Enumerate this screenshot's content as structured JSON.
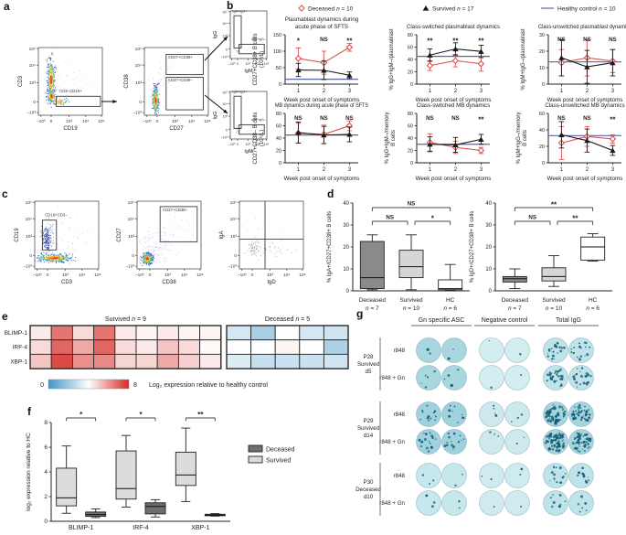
{
  "panels": {
    "a": "a",
    "b": "b",
    "c": "c",
    "d": "d",
    "e": "e",
    "f": "f",
    "g": "g"
  },
  "flow_ticks": {
    "x": [
      "–10³",
      "0",
      "10³",
      "10⁴",
      "10⁵"
    ],
    "y": [
      "–10³",
      "0",
      "10³",
      "10⁴",
      "10⁵"
    ]
  },
  "panel_a": {
    "plot1": {
      "xlabel": "CD19",
      "ylabel": "CD3",
      "gate": "CD3–CD19+"
    },
    "plot2": {
      "xlabel": "CD27",
      "ylabel": "CD38",
      "gate_top": "CD27+CD38+",
      "gate_bottom": "CD27+CD38–"
    },
    "small_top": {
      "xlabel": "IgM",
      "ylabel": "IgG",
      "gate_vertical": "IgM–IgG+",
      "gate_horizontal": "IgM+IgG–"
    },
    "small_bottom": {
      "xlabel": "IgM",
      "ylabel": "IgG",
      "gate_vertical": "IgM–IgG+",
      "gate_horizontal": "IgM+IgG–"
    }
  },
  "panel_b": {
    "legend": [
      {
        "label": "Deceased n = 10",
        "color": "#e0524e",
        "marker": "diamond"
      },
      {
        "label": "Survived n = 17",
        "color": "#1a1a1a",
        "marker": "triangle"
      },
      {
        "label": "Healthy control n = 10",
        "color": "#5b64a8",
        "marker": "line"
      }
    ],
    "xlabel": "Week post onset of symptoms"
  },
  "panel_c": {
    "plot1": {
      "xlabel": "CD3",
      "ylabel": "CD19",
      "gate": "CD19+CD3–"
    },
    "plot2": {
      "xlabel": "CD38",
      "ylabel": "CD27",
      "gate": "CD27+CD38+"
    },
    "plot3": {
      "xlabel": "IgD",
      "ylabel": "IgA"
    }
  },
  "panel_e": {
    "title_survived": "Survived n = 9",
    "title_deceased": "Deceased n = 5",
    "colorbar": {
      "min": "0",
      "max": "8",
      "label": "Log₂ expression relative to healthy control"
    }
  },
  "panel_f": {
    "legend": [
      {
        "label": "Deceased",
        "color": "#6e6e6e"
      },
      {
        "label": "Survived",
        "color": "#dcdcdc"
      }
    ]
  },
  "panel_g": {
    "headers": [
      "Gn specific ASC",
      "Negative control",
      "Total IgG"
    ],
    "spot_color": "#155d75",
    "groups": [
      {
        "label_lines": [
          "P28",
          "Survived",
          "d5"
        ],
        "well_colors": [
          "#a9d7e0",
          "#d3edf1",
          "#bfe3e9"
        ],
        "rows": [
          {
            "label": "r848",
            "spots": [
              2,
              1,
              20
            ]
          },
          {
            "label": "r848 + Gn",
            "spots": [
              5,
              1,
              28
            ]
          }
        ]
      },
      {
        "label_lines": [
          "P29",
          "Survived",
          "d14"
        ],
        "well_colors": [
          "#9fd2dc",
          "#cde9ee",
          "#a5d5de"
        ],
        "rows": [
          {
            "label": "r848",
            "spots": [
              12,
              4,
              55
            ]
          },
          {
            "label": "r848 + Gn",
            "spots": [
              18,
              3,
              68
            ]
          }
        ]
      },
      {
        "label_lines": [
          "P30",
          "Deceased",
          "d10"
        ],
        "well_colors": [
          "#c6e7ec",
          "#cfebef",
          "#bee3e9"
        ],
        "rows": [
          {
            "label": "r848",
            "spots": [
              3,
              2,
              15
            ]
          },
          {
            "label": "r848 + Gn",
            "spots": [
              3,
              1,
              8
            ]
          }
        ]
      }
    ]
  },
  "chart_data": [
    {
      "id": "b1",
      "type": "line",
      "title": [
        "Plasmablast dynamics during",
        "acute phase of SFTS"
      ],
      "ylabel": [
        "CD27+CD38+ B cells",
        "(10⁶/L)"
      ],
      "ylim": [
        0,
        150
      ],
      "yticks": [
        0,
        50,
        100,
        150
      ],
      "x": [
        1,
        2,
        3
      ],
      "xlabel": "Week post onset of symptoms",
      "sig": [
        "*",
        "NS",
        "**"
      ],
      "series": [
        {
          "name": "Deceased",
          "color": "#e0524e",
          "marker": "diamond",
          "values": [
            78,
            65,
            112
          ],
          "err": [
            32,
            35,
            12
          ]
        },
        {
          "name": "Survived",
          "color": "#1a1a1a",
          "marker": "triangle",
          "values": [
            43,
            42,
            27
          ],
          "err": [
            20,
            28,
            10
          ]
        }
      ],
      "hc": 15
    },
    {
      "id": "b2",
      "type": "line",
      "title": [
        "Class-switched plasmablast dynamics"
      ],
      "ylabel": [
        "% IgG+IgM–/plasmablast"
      ],
      "ylim": [
        0,
        80
      ],
      "yticks": [
        0,
        20,
        40,
        60,
        80
      ],
      "x": [
        1,
        2,
        3
      ],
      "xlabel": "Week post onset of symptoms",
      "sig": [
        "**",
        "**",
        "**"
      ],
      "series": [
        {
          "name": "Deceased",
          "color": "#e0524e",
          "marker": "diamond",
          "values": [
            30,
            38,
            33
          ],
          "err": [
            8,
            10,
            12
          ]
        },
        {
          "name": "Survived",
          "color": "#1a1a1a",
          "marker": "triangle",
          "values": [
            47,
            57,
            53
          ],
          "err": [
            10,
            10,
            10
          ]
        }
      ],
      "hc": 45
    },
    {
      "id": "b3",
      "type": "line",
      "title": [
        "Class-unswitched plasmablast dynamics"
      ],
      "ylabel": [
        "% IgM+IgG–/plasmablast"
      ],
      "ylim": [
        0,
        30
      ],
      "yticks": [
        0,
        10,
        20,
        30
      ],
      "x": [
        1,
        2,
        3
      ],
      "xlabel": "Week post onset of symptoms",
      "sig": [
        "NS",
        "NS",
        "NS"
      ],
      "series": [
        {
          "name": "Deceased",
          "color": "#e0524e",
          "marker": "diamond",
          "values": [
            13,
            16,
            14
          ],
          "err": [
            8,
            11,
            7
          ]
        },
        {
          "name": "Survived",
          "color": "#1a1a1a",
          "marker": "triangle",
          "values": [
            16,
            10.5,
            13
          ],
          "err": [
            11,
            10,
            8
          ]
        }
      ],
      "hc": 13.5
    },
    {
      "id": "b4",
      "type": "line",
      "title": [
        "MB dynamics during acute phase of SFTS"
      ],
      "ylabel": [
        "CD27+CD38– B cells",
        "(10⁶/L)"
      ],
      "ylim": [
        0,
        80
      ],
      "yticks": [
        0,
        20,
        40,
        60,
        80
      ],
      "x": [
        1,
        2,
        3
      ],
      "xlabel": "Week post onset of symptoms",
      "sig": [
        "NS",
        "NS",
        "NS"
      ],
      "series": [
        {
          "name": "Deceased",
          "color": "#e0524e",
          "marker": "diamond",
          "values": [
            48,
            46,
            60
          ],
          "err": [
            16,
            15,
            8
          ]
        },
        {
          "name": "Survived",
          "color": "#1a1a1a",
          "marker": "triangle",
          "values": [
            49,
            45,
            46
          ],
          "err": [
            17,
            14,
            12
          ]
        }
      ],
      "hc": 45
    },
    {
      "id": "b5",
      "type": "line",
      "title": [
        "Class-switched MB dynamics"
      ],
      "ylabel": [
        "% IgG+IgM–/memory",
        "B cells"
      ],
      "ylim": [
        0,
        80
      ],
      "yticks": [
        0,
        20,
        40,
        60,
        80
      ],
      "x": [
        1,
        2,
        3
      ],
      "xlabel": "Week post onset of symptoms",
      "sig": [
        "NS",
        "NS",
        "**"
      ],
      "series": [
        {
          "name": "Deceased",
          "color": "#e0524e",
          "marker": "diamond",
          "values": [
            33,
            25,
            20
          ],
          "err": [
            14,
            10,
            5
          ]
        },
        {
          "name": "Survived",
          "color": "#1a1a1a",
          "marker": "triangle",
          "values": [
            30,
            29,
            38
          ],
          "err": [
            12,
            12,
            8
          ]
        }
      ],
      "hc": 30
    },
    {
      "id": "b6",
      "type": "line",
      "title": [
        "Class-unswitched MB dynamics"
      ],
      "ylabel": [
        "% IgM+IgG–/memory",
        "B cells"
      ],
      "ylim": [
        0,
        60
      ],
      "yticks": [
        0,
        20,
        40,
        60
      ],
      "x": [
        1,
        2,
        3
      ],
      "xlabel": "Week post onset of symptoms",
      "sig": [
        "NS",
        "NS",
        "**"
      ],
      "series": [
        {
          "name": "Deceased",
          "color": "#e0524e",
          "marker": "diamond",
          "values": [
            24,
            32,
            29
          ],
          "err": [
            20,
            12,
            5
          ],
          "hc_note": ""
        },
        {
          "name": "Survived",
          "color": "#1a1a1a",
          "marker": "triangle",
          "values": [
            34,
            27,
            15
          ],
          "err": [
            16,
            14,
            6
          ]
        }
      ],
      "hc": 33
    },
    {
      "id": "d1",
      "type": "box",
      "ylabel": "% IgA+/CD27+CD38+ B cells",
      "ylim": [
        0,
        40
      ],
      "yticks": [
        0,
        10,
        20,
        30,
        40
      ],
      "categories": [
        {
          "label": "Deceased",
          "n": "n = 7",
          "fill": "#8a8a8a"
        },
        {
          "label": "Survived",
          "n": "n = 10",
          "fill": "#d6d6d6"
        },
        {
          "label": "HC",
          "n": "n = 6",
          "fill": "#ffffff"
        }
      ],
      "boxes": [
        {
          "min": 0.5,
          "q1": 1,
          "median": 6,
          "q3": 22.5,
          "max": 25.5
        },
        {
          "min": 0.5,
          "q1": 6,
          "median": 11,
          "q3": 18.5,
          "max": 25.5
        },
        {
          "min": 0.3,
          "q1": 0.5,
          "median": 1,
          "q3": 5,
          "max": 12
        }
      ],
      "sig": [
        {
          "from": 0,
          "to": 2,
          "label": "NS",
          "level": 0
        },
        {
          "from": 0,
          "to": 1,
          "label": "NS",
          "level": 1
        },
        {
          "from": 1,
          "to": 2,
          "label": "*",
          "level": 1
        }
      ]
    },
    {
      "id": "d2",
      "type": "box",
      "ylabel": "% IgD+/CD27+CD38+ B cells",
      "ylim": [
        0,
        40
      ],
      "yticks": [
        0,
        10,
        20,
        30,
        40
      ],
      "categories": [
        {
          "label": "Deceased",
          "n": "n = 7",
          "fill": "#8a8a8a"
        },
        {
          "label": "Survived",
          "n": "n = 10",
          "fill": "#d6d6d6"
        },
        {
          "label": "HC",
          "n": "n = 6",
          "fill": "#ffffff"
        }
      ],
      "boxes": [
        {
          "min": 1,
          "q1": 4,
          "median": 5.5,
          "q3": 6.5,
          "max": 10
        },
        {
          "min": 2,
          "q1": 4.5,
          "median": 6.5,
          "q3": 10.5,
          "max": 16
        },
        {
          "min": 13.5,
          "q1": 14,
          "median": 20,
          "q3": 24.5,
          "max": 26
        }
      ],
      "sig": [
        {
          "from": 0,
          "to": 2,
          "label": "**",
          "level": 0
        },
        {
          "from": 0,
          "to": 1,
          "label": "NS",
          "level": 1
        },
        {
          "from": 1,
          "to": 2,
          "label": "**",
          "level": 1
        }
      ]
    },
    {
      "id": "e",
      "type": "heatmap",
      "rows": [
        "BLIMP-1",
        "IRF-4",
        "XBP-1"
      ],
      "groups": [
        {
          "name": "Survived n = 9",
          "values": [
            [
              4.4,
              6.6,
              4.7,
              6.6,
              4.4,
              4.2,
              4.4,
              4.2,
              4.2
            ],
            [
              4.7,
              6.9,
              5.6,
              6.9,
              4.7,
              4.4,
              5.1,
              4.7,
              4.1
            ],
            [
              5.1,
              7.4,
              6.1,
              6.2,
              4.8,
              4.8,
              5.6,
              4.9,
              4.4
            ]
          ]
        },
        {
          "name": "Deceased n = 5",
          "values": [
            [
              3.1,
              2.2,
              4.0,
              3.1,
              3.0
            ],
            [
              4.0,
              4.0,
              4.2,
              4.0,
              2.3
            ],
            [
              3.3,
              2.8,
              2.9,
              2.9,
              3.0
            ]
          ]
        }
      ],
      "scale": {
        "min": 0,
        "max": 8,
        "min_color": "#4193c7",
        "mid_color": "#ffffff",
        "max_color": "#d62b25"
      },
      "colorbar_label": "Log₂ expression relative to healthy control"
    },
    {
      "id": "f",
      "type": "box",
      "ylabel": "log₂ expression relative to HC",
      "ylim": [
        0,
        8
      ],
      "yticks": [
        0,
        2,
        4,
        6,
        8
      ],
      "categories": [
        "BLIMP-1",
        "IRF-4",
        "XBP-1"
      ],
      "sig": [
        "*",
        "*",
        "**"
      ],
      "series": [
        {
          "name": "Survived",
          "fill": "#dcdcdc",
          "boxes": [
            {
              "min": 0.65,
              "q1": 1.25,
              "median": 1.9,
              "q3": 4.3,
              "max": 6.1
            },
            {
              "min": 1.15,
              "q1": 1.8,
              "median": 2.65,
              "q3": 5.7,
              "max": 6.95
            },
            {
              "min": 1.6,
              "q1": 2.9,
              "median": 3.75,
              "q3": 5.6,
              "max": 7.55
            }
          ]
        },
        {
          "name": "Deceased",
          "fill": "#6e6e6e",
          "boxes": [
            {
              "min": 0.3,
              "q1": 0.4,
              "median": 0.55,
              "q3": 0.75,
              "max": 1.0
            },
            {
              "min": 0.35,
              "q1": 0.6,
              "median": 1.2,
              "q3": 1.5,
              "max": 1.75
            },
            {
              "min": 0.42,
              "q1": 0.45,
              "median": 0.5,
              "q3": 0.57,
              "max": 0.62
            }
          ]
        }
      ]
    }
  ]
}
